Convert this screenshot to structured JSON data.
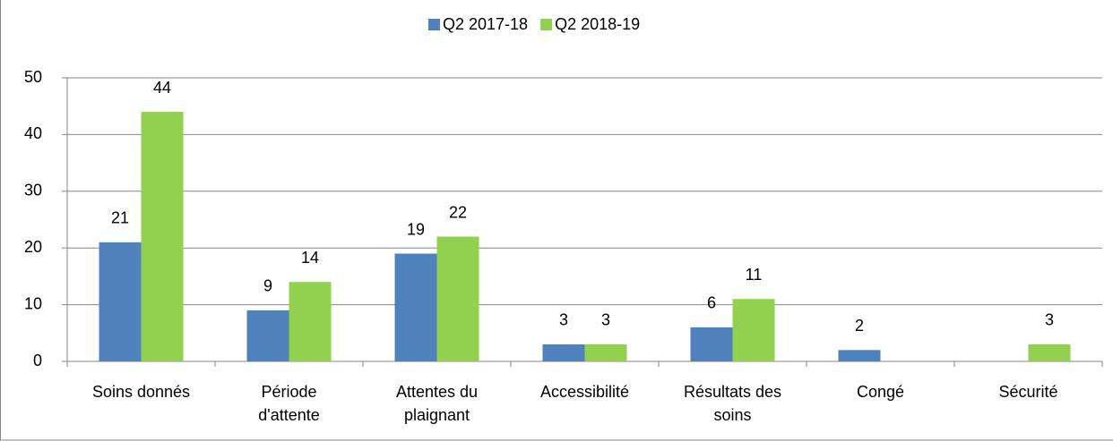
{
  "chart_data": {
    "type": "bar",
    "categories": [
      "Soins donnés",
      "Période d'attente",
      "Attentes du plaignant",
      "Accessibilité",
      "Résultats des soins",
      "Congé",
      "Sécurité"
    ],
    "series": [
      {
        "name": "Q2 2017-18",
        "color": "#4f81bd",
        "values": [
          21,
          9,
          19,
          3,
          6,
          2,
          null
        ]
      },
      {
        "name": "Q2 2018-19",
        "color": "#92d050",
        "values": [
          44,
          14,
          22,
          3,
          11,
          null,
          3
        ]
      }
    ],
    "ylim": [
      0,
      50
    ],
    "yticks": [
      0,
      10,
      20,
      30,
      40,
      50
    ],
    "grid": true,
    "legend": "top"
  }
}
